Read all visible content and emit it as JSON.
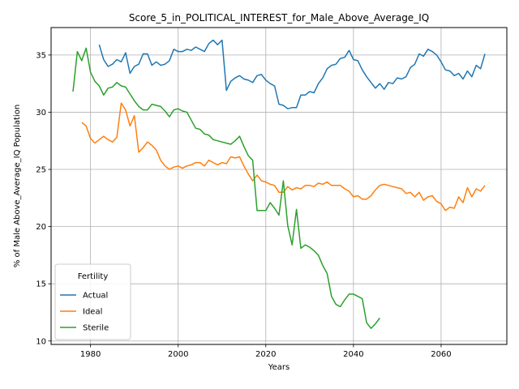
{
  "chart_data": {
    "type": "line",
    "title": "Score_5_in_POLITICAL_INTEREST_for_Male_Above_Average_IQ",
    "xlabel": "Years",
    "ylabel": "% of Male Above_Average_IQ Population",
    "xlim": [
      1971,
      2075
    ],
    "ylim": [
      9.7,
      37.4
    ],
    "xticks": [
      1980,
      2000,
      2020,
      2040,
      2060
    ],
    "yticks": [
      10,
      15,
      20,
      25,
      30,
      35
    ],
    "grid": true,
    "legend": {
      "title": "Fertility",
      "placement": "lower-left"
    },
    "series": [
      {
        "name": "Actual",
        "color": "#1f77b4",
        "x": [
          1982,
          1983,
          1984,
          1985,
          1986,
          1987,
          1988,
          1989,
          1990,
          1991,
          1992,
          1993,
          1994,
          1995,
          1996,
          1997,
          1998,
          1999,
          2000,
          2001,
          2002,
          2003,
          2004,
          2005,
          2006,
          2007,
          2008,
          2009,
          2010,
          2011,
          2012,
          2013,
          2014,
          2015,
          2016,
          2017,
          2018,
          2019,
          2020,
          2021,
          2022,
          2023,
          2024,
          2025,
          2026,
          2027,
          2028,
          2029,
          2030,
          2031,
          2032,
          2033,
          2034,
          2035,
          2036,
          2037,
          2038,
          2039,
          2040,
          2041,
          2042,
          2043,
          2044,
          2045,
          2046,
          2047,
          2048,
          2049,
          2050,
          2051,
          2052,
          2053,
          2054,
          2055,
          2056,
          2057,
          2058,
          2059,
          2060,
          2061,
          2062,
          2063,
          2064,
          2065,
          2066,
          2067,
          2068,
          2069,
          2070
        ],
        "values": [
          35.9,
          34.6,
          34.0,
          34.2,
          34.6,
          34.4,
          35.2,
          33.4,
          34.0,
          34.2,
          35.1,
          35.1,
          34.1,
          34.4,
          34.1,
          34.2,
          34.5,
          35.5,
          35.3,
          35.3,
          35.5,
          35.4,
          35.7,
          35.5,
          35.3,
          36.0,
          36.3,
          35.9,
          36.3,
          31.9,
          32.7,
          33.0,
          33.2,
          32.9,
          32.8,
          32.6,
          33.2,
          33.3,
          32.8,
          32.5,
          32.3,
          30.7,
          30.6,
          30.3,
          30.4,
          30.4,
          31.5,
          31.5,
          31.8,
          31.7,
          32.5,
          33.0,
          33.8,
          34.1,
          34.2,
          34.7,
          34.8,
          35.4,
          34.6,
          34.5,
          33.7,
          33.1,
          32.6,
          32.1,
          32.5,
          32.0,
          32.6,
          32.5,
          33.0,
          32.9,
          33.1,
          33.9,
          34.2,
          35.1,
          34.9,
          35.5,
          35.3,
          35.0,
          34.4,
          33.7,
          33.6,
          33.2,
          33.4,
          32.9,
          33.6,
          33.1,
          34.1,
          33.8,
          35.1
        ]
      },
      {
        "name": "Ideal",
        "color": "#ff7f0e",
        "x": [
          1978,
          1979,
          1980,
          1981,
          1982,
          1983,
          1984,
          1985,
          1986,
          1987,
          1988,
          1989,
          1990,
          1991,
          1992,
          1993,
          1994,
          1995,
          1996,
          1997,
          1998,
          1999,
          2000,
          2001,
          2002,
          2003,
          2004,
          2005,
          2006,
          2007,
          2008,
          2009,
          2010,
          2011,
          2012,
          2013,
          2014,
          2015,
          2016,
          2017,
          2018,
          2019,
          2020,
          2021,
          2022,
          2023,
          2024,
          2025,
          2026,
          2027,
          2028,
          2029,
          2030,
          2031,
          2032,
          2033,
          2034,
          2035,
          2036,
          2037,
          2038,
          2039,
          2040,
          2041,
          2042,
          2043,
          2044,
          2045,
          2046,
          2047,
          2048,
          2049,
          2050,
          2051,
          2052,
          2053,
          2054,
          2055,
          2056,
          2057,
          2058,
          2059,
          2060,
          2061,
          2062,
          2063,
          2064,
          2065,
          2066,
          2067,
          2068,
          2069,
          2070
        ],
        "values": [
          29.1,
          28.8,
          27.7,
          27.3,
          27.6,
          27.9,
          27.6,
          27.4,
          27.8,
          30.8,
          30.2,
          28.8,
          29.7,
          26.5,
          26.9,
          27.4,
          27.1,
          26.7,
          25.8,
          25.3,
          25.0,
          25.2,
          25.3,
          25.1,
          25.3,
          25.4,
          25.6,
          25.6,
          25.3,
          25.8,
          25.6,
          25.4,
          25.6,
          25.5,
          26.1,
          26.0,
          26.1,
          25.3,
          24.6,
          24.0,
          24.5,
          24.0,
          23.9,
          23.7,
          23.6,
          23.0,
          23.0,
          23.5,
          23.2,
          23.4,
          23.3,
          23.6,
          23.6,
          23.5,
          23.8,
          23.7,
          23.9,
          23.6,
          23.6,
          23.6,
          23.3,
          23.1,
          22.6,
          22.7,
          22.4,
          22.4,
          22.7,
          23.2,
          23.6,
          23.7,
          23.6,
          23.5,
          23.4,
          23.3,
          22.9,
          23.0,
          22.6,
          23.0,
          22.3,
          22.6,
          22.7,
          22.2,
          22.0,
          21.4,
          21.7,
          21.6,
          22.6,
          22.1,
          23.4,
          22.6,
          23.3,
          23.1,
          23.6
        ]
      },
      {
        "name": "Sterile",
        "color": "#2ca02c",
        "x": [
          1976,
          1977,
          1978,
          1979,
          1980,
          1981,
          1982,
          1983,
          1984,
          1985,
          1986,
          1987,
          1988,
          1989,
          1990,
          1991,
          1992,
          1993,
          1994,
          1995,
          1996,
          1997,
          1998,
          1999,
          2000,
          2001,
          2002,
          2003,
          2004,
          2005,
          2006,
          2007,
          2008,
          2009,
          2010,
          2011,
          2012,
          2013,
          2014,
          2015,
          2016,
          2017,
          2018,
          2019,
          2020,
          2021,
          2022,
          2023,
          2024,
          2025,
          2026,
          2027,
          2028,
          2029,
          2030,
          2031,
          2032,
          2033,
          2034,
          2035,
          2036,
          2037,
          2038,
          2039,
          2040,
          2041,
          2042,
          2043,
          2044,
          2045,
          2046
        ],
        "values": [
          31.8,
          35.3,
          34.5,
          35.6,
          33.5,
          32.7,
          32.3,
          31.5,
          32.1,
          32.2,
          32.6,
          32.3,
          32.2,
          31.6,
          31.0,
          30.5,
          30.2,
          30.2,
          30.7,
          30.6,
          30.5,
          30.1,
          29.6,
          30.2,
          30.3,
          30.1,
          30.0,
          29.3,
          28.6,
          28.5,
          28.1,
          28.0,
          27.6,
          27.5,
          27.4,
          27.3,
          27.2,
          27.5,
          27.9,
          27.0,
          26.2,
          25.8,
          21.4,
          21.4,
          21.4,
          22.1,
          21.6,
          21.0,
          24.0,
          20.1,
          18.4,
          21.5,
          18.1,
          18.4,
          18.2,
          17.9,
          17.5,
          16.6,
          15.9,
          13.9,
          13.2,
          13.0,
          13.6,
          14.1,
          14.1,
          13.9,
          13.7,
          11.6,
          11.1,
          11.5,
          12.0
        ]
      }
    ]
  }
}
